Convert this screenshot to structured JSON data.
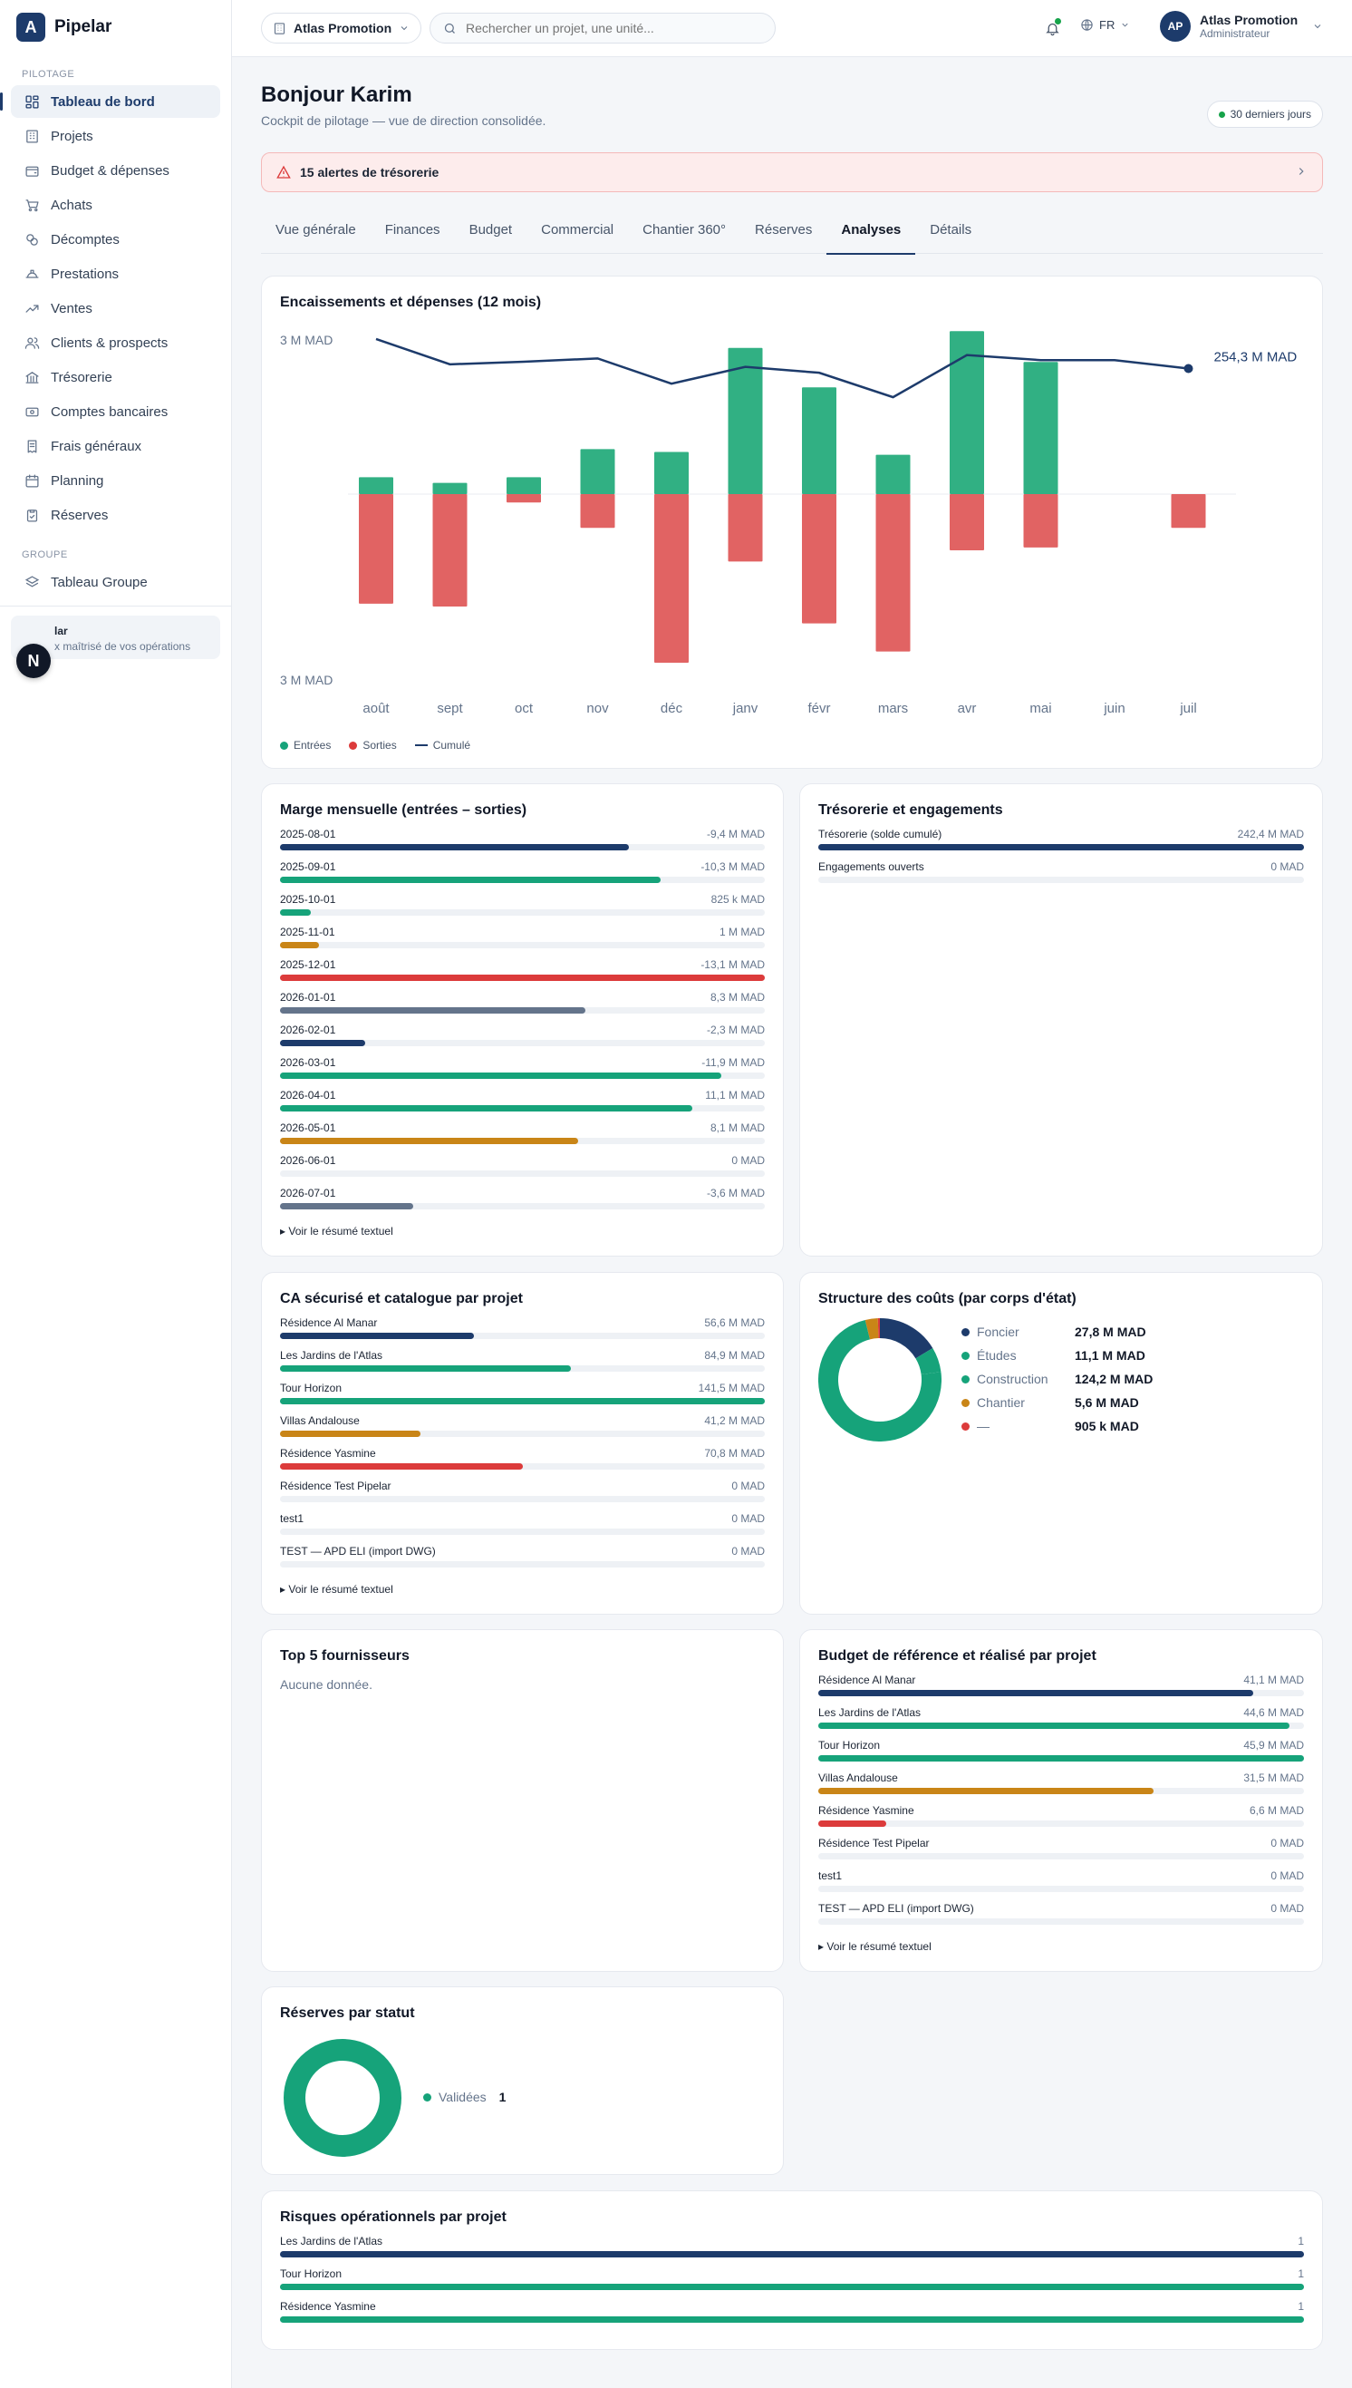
{
  "app": {
    "name": "Pipelar",
    "logo_letter": "A"
  },
  "sidebar": {
    "section_pilotage": "PILOTAGE",
    "items": [
      {
        "label": "Tableau de bord",
        "icon": "dashboard-icon",
        "active": true
      },
      {
        "label": "Projets",
        "icon": "building-icon"
      },
      {
        "label": "Budget & dépenses",
        "icon": "wallet-icon"
      },
      {
        "label": "Achats",
        "icon": "cart-icon"
      },
      {
        "label": "Décomptes",
        "icon": "coins-icon"
      },
      {
        "label": "Prestations",
        "icon": "hardhat-icon"
      },
      {
        "label": "Ventes",
        "icon": "trending-up-icon"
      },
      {
        "label": "Clients & prospects",
        "icon": "users-icon"
      },
      {
        "label": "Trésorerie",
        "icon": "bank-icon"
      },
      {
        "label": "Comptes bancaires",
        "icon": "banknote-icon"
      },
      {
        "label": "Frais généraux",
        "icon": "receipt-icon"
      },
      {
        "label": "Planning",
        "icon": "calendar-icon"
      },
      {
        "label": "Réserves",
        "icon": "clipboard-check-icon"
      }
    ],
    "section_groupe": "GROUPE",
    "group_item": {
      "label": "Tableau Groupe",
      "icon": "layers-icon"
    },
    "user_card": {
      "title": "lar",
      "subtitle": "x maîtrisé de vos opérations"
    },
    "fab_letter": "N"
  },
  "topbar": {
    "org": "Atlas Promotion",
    "search_placeholder": "Rechercher un projet, une unité...",
    "lang": "FR",
    "account_initials": "AP",
    "account_name": "Atlas Promotion",
    "account_role": "Administrateur"
  },
  "header": {
    "title": "Bonjour Karim",
    "subtitle": "Cockpit de pilotage — vue de direction consolidée.",
    "period": "30 derniers jours",
    "alert": "15 alertes de trésorerie"
  },
  "tabs": [
    "Vue générale",
    "Finances",
    "Budget",
    "Commercial",
    "Chantier 360°",
    "Réserves",
    "Analyses",
    "Détails"
  ],
  "active_tab": "Analyses",
  "colors": {
    "green": "#16a37a",
    "red": "#dc3b3b",
    "navy": "#1d3b6b",
    "amber": "#c98517",
    "slate": "#64748b"
  },
  "chart_data": {
    "type": "bar",
    "title": "Encaissements et dépenses (12 mois)",
    "categories": [
      "août",
      "sept",
      "oct",
      "nov",
      "déc",
      "janv",
      "févr",
      "mars",
      "avr",
      "mai",
      "juin",
      "juil"
    ],
    "series": [
      {
        "name": "Entrées",
        "values": [
          0.3,
          0.2,
          0.3,
          0.8,
          0.75,
          2.6,
          1.9,
          0.7,
          2.9,
          2.35,
          0,
          0
        ]
      },
      {
        "name": "Sorties",
        "values": [
          -1.95,
          -2.0,
          -0.15,
          -0.6,
          -3.0,
          -1.2,
          -2.3,
          -2.8,
          -1.0,
          -0.95,
          0,
          -0.6
        ]
      },
      {
        "name": "Cumulé",
        "values": [
          3.05,
          2.75,
          2.78,
          2.82,
          2.52,
          2.72,
          2.65,
          2.36,
          2.86,
          2.8,
          2.8,
          2.7
        ]
      }
    ],
    "y_top_label": "3 M MAD",
    "y_bottom_label": "3 M MAD",
    "end_label": "254,3 M MAD",
    "ylim": [
      -3,
      3
    ]
  },
  "marge": {
    "title": "Marge mensuelle (entrées – sorties)",
    "rows": [
      {
        "label": "2025-08-01",
        "value": "-9,4 M MAD",
        "pct": 72,
        "color": "#1d3b6b"
      },
      {
        "label": "2025-09-01",
        "value": "-10,3 M MAD",
        "pct": 78.5,
        "color": "#16a37a"
      },
      {
        "label": "2025-10-01",
        "value": "825 k MAD",
        "pct": 6.3,
        "color": "#16a37a"
      },
      {
        "label": "2025-11-01",
        "value": "1 M MAD",
        "pct": 8,
        "color": "#c98517"
      },
      {
        "label": "2025-12-01",
        "value": "-13,1 M MAD",
        "pct": 100,
        "color": "#dc3b3b"
      },
      {
        "label": "2026-01-01",
        "value": "8,3 M MAD",
        "pct": 63,
        "color": "#64748b"
      },
      {
        "label": "2026-02-01",
        "value": "-2,3 M MAD",
        "pct": 17.5,
        "color": "#1d3b6b"
      },
      {
        "label": "2026-03-01",
        "value": "-11,9 M MAD",
        "pct": 91,
        "color": "#16a37a"
      },
      {
        "label": "2026-04-01",
        "value": "11,1 M MAD",
        "pct": 85,
        "color": "#16a37a"
      },
      {
        "label": "2026-05-01",
        "value": "8,1 M MAD",
        "pct": 61.5,
        "color": "#c98517"
      },
      {
        "label": "2026-06-01",
        "value": "0 MAD",
        "pct": 0,
        "color": "#dc3b3b"
      },
      {
        "label": "2026-07-01",
        "value": "-3,6 M MAD",
        "pct": 27.5,
        "color": "#64748b"
      }
    ],
    "summary": "▸ Voir le résumé textuel"
  },
  "tresorerie": {
    "title": "Trésorerie et engagements",
    "rows": [
      {
        "label": "Trésorerie (solde cumulé)",
        "value": "242,4 M MAD",
        "pct": 100,
        "color": "#1d3b6b"
      },
      {
        "label": "Engagements ouverts",
        "value": "0 MAD",
        "pct": 0,
        "color": "#16a37a"
      }
    ]
  },
  "ca": {
    "title": "CA sécurisé et catalogue par projet",
    "rows": [
      {
        "label": "Résidence Al Manar",
        "value": "56,6 M MAD",
        "pct": 40,
        "color": "#1d3b6b"
      },
      {
        "label": "Les Jardins de l'Atlas",
        "value": "84,9 M MAD",
        "pct": 60,
        "color": "#16a37a"
      },
      {
        "label": "Tour Horizon",
        "value": "141,5 M MAD",
        "pct": 100,
        "color": "#16a37a"
      },
      {
        "label": "Villas Andalouse",
        "value": "41,2 M MAD",
        "pct": 29,
        "color": "#c98517"
      },
      {
        "label": "Résidence Yasmine",
        "value": "70,8 M MAD",
        "pct": 50,
        "color": "#dc3b3b"
      },
      {
        "label": "Résidence Test Pipelar",
        "value": "0 MAD",
        "pct": 0,
        "color": "#64748b"
      },
      {
        "label": "test1",
        "value": "0 MAD",
        "pct": 0,
        "color": "#1d3b6b"
      },
      {
        "label": "TEST — APD ELI (import DWG)",
        "value": "0 MAD",
        "pct": 0,
        "color": "#16a37a"
      }
    ],
    "summary": "▸ Voir le résumé textuel"
  },
  "structure": {
    "title": "Structure des coûts (par corps d'état)",
    "items": [
      {
        "name": "Foncier",
        "value": "27,8 M MAD",
        "amount": 27.8,
        "color": "#1d3b6b"
      },
      {
        "name": "Études",
        "value": "11,1 M MAD",
        "amount": 11.1,
        "color": "#16a37a"
      },
      {
        "name": "Construction",
        "value": "124,2 M MAD",
        "amount": 124.2,
        "color": "#16a37a"
      },
      {
        "name": "Chantier",
        "value": "5,6 M MAD",
        "amount": 5.6,
        "color": "#c98517"
      },
      {
        "name": "—",
        "value": "905 k MAD",
        "amount": 0.905,
        "color": "#dc3b3b"
      }
    ]
  },
  "fournisseurs": {
    "title": "Top 5 fournisseurs",
    "empty": "Aucune donnée."
  },
  "budget": {
    "title": "Budget de référence et réalisé par projet",
    "rows": [
      {
        "label": "Résidence Al Manar",
        "value": "41,1 M MAD",
        "pct": 89.5,
        "color": "#1d3b6b"
      },
      {
        "label": "Les Jardins de l'Atlas",
        "value": "44,6 M MAD",
        "pct": 97,
        "color": "#16a37a"
      },
      {
        "label": "Tour Horizon",
        "value": "45,9 M MAD",
        "pct": 100,
        "color": "#16a37a"
      },
      {
        "label": "Villas Andalouse",
        "value": "31,5 M MAD",
        "pct": 69,
        "color": "#c98517"
      },
      {
        "label": "Résidence Yasmine",
        "value": "6,6 M MAD",
        "pct": 14,
        "color": "#dc3b3b"
      },
      {
        "label": "Résidence Test Pipelar",
        "value": "0 MAD",
        "pct": 0,
        "color": "#64748b"
      },
      {
        "label": "test1",
        "value": "0 MAD",
        "pct": 0,
        "color": "#1d3b6b"
      },
      {
        "label": "TEST — APD ELI (import DWG)",
        "value": "0 MAD",
        "pct": 0,
        "color": "#16a37a"
      }
    ],
    "summary": "▸ Voir le résumé textuel"
  },
  "reserves": {
    "title": "Réserves par statut",
    "items": [
      {
        "name": "Validées",
        "value": "1",
        "color": "#16a37a"
      }
    ]
  },
  "risques": {
    "title": "Risques opérationnels par projet",
    "rows": [
      {
        "label": "Les Jardins de l'Atlas",
        "value": "1",
        "pct": 100,
        "color": "#1d3b6b"
      },
      {
        "label": "Tour Horizon",
        "value": "1",
        "pct": 100,
        "color": "#16a37a"
      },
      {
        "label": "Résidence Yasmine",
        "value": "1",
        "pct": 100,
        "color": "#16a37a"
      }
    ]
  }
}
